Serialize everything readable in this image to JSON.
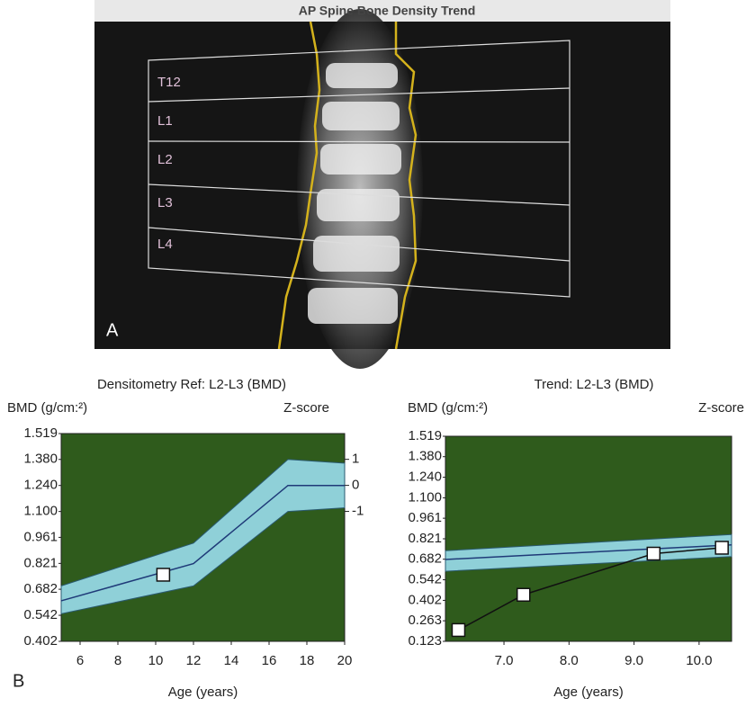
{
  "figure": {
    "image_title": "AP Spine Bone Density Trend",
    "vertebrae": [
      "T12",
      "L1",
      "L2",
      "L3",
      "L4"
    ],
    "panel_labels": [
      "A",
      "B"
    ]
  },
  "chart_data": [
    {
      "type": "reference-band",
      "title": "Densitometry Ref: L2-L3 (BMD)",
      "y_label": "BMD (g/cm:²)",
      "y2_label": "Z-score",
      "x_label": "Age (years)",
      "background": "#2f5b1c",
      "band_color": "#8fd0d8",
      "line_color": "#1f3a78",
      "xlim": [
        5,
        20
      ],
      "xticks": [
        6,
        8,
        10,
        12,
        14,
        16,
        18,
        20
      ],
      "ylim": [
        0.402,
        1.519
      ],
      "yticks": [
        0.402,
        0.542,
        0.682,
        0.821,
        0.961,
        {
          "value": 1.1,
          "label": "1.100"
        },
        {
          "value": 1.24,
          "label": "1.240"
        },
        {
          "value": 1.38,
          "label": "1.380"
        },
        1.519
      ],
      "y2lim": [
        -5.99,
        1.99
      ],
      "y2ticks": [
        -1,
        0,
        1
      ],
      "band": {
        "x": [
          5,
          12,
          17,
          20
        ],
        "lower": [
          0.55,
          0.7,
          1.1,
          1.12
        ],
        "upper": [
          0.7,
          0.93,
          1.38,
          1.36
        ]
      },
      "mean": {
        "x": [
          5,
          12,
          17,
          20
        ],
        "values": [
          0.62,
          0.82,
          1.24,
          1.24
        ]
      },
      "points": {
        "x": [
          10.4
        ],
        "values": [
          0.76
        ]
      }
    },
    {
      "type": "reference-band",
      "title": "Trend: L2-L3 (BMD)",
      "y_label": "BMD (g/cm:²)",
      "y2_label": "Z-score",
      "x_label": "Age (years)",
      "background": "#2f5b1c",
      "band_color": "#8fd0d8",
      "line_color": "#1f3a78",
      "xlim": [
        6.1,
        10.5
      ],
      "xticks": [
        {
          "value": 7,
          "label": "7.0"
        },
        {
          "value": 8,
          "label": "8.0"
        },
        {
          "value": 9,
          "label": "9.0"
        },
        {
          "value": 10,
          "label": "10.0"
        }
      ],
      "ylim": [
        0.123,
        1.519
      ],
      "yticks": [
        0.123,
        0.263,
        0.402,
        0.542,
        0.682,
        0.821,
        0.961,
        {
          "value": 1.1,
          "label": "1.100"
        },
        {
          "value": 1.24,
          "label": "1.240"
        },
        {
          "value": 1.38,
          "label": "1.380"
        },
        1.519
      ],
      "band": {
        "x": [
          6.1,
          10.5
        ],
        "lower": [
          0.6,
          0.7
        ],
        "upper": [
          0.74,
          0.85
        ]
      },
      "mean": {
        "x": [
          6.1,
          10.5
        ],
        "values": [
          0.68,
          0.78
        ]
      },
      "points": {
        "x": [
          6.3,
          7.3,
          9.3,
          10.35
        ],
        "values": [
          0.2,
          0.44,
          0.72,
          0.76
        ]
      }
    }
  ]
}
